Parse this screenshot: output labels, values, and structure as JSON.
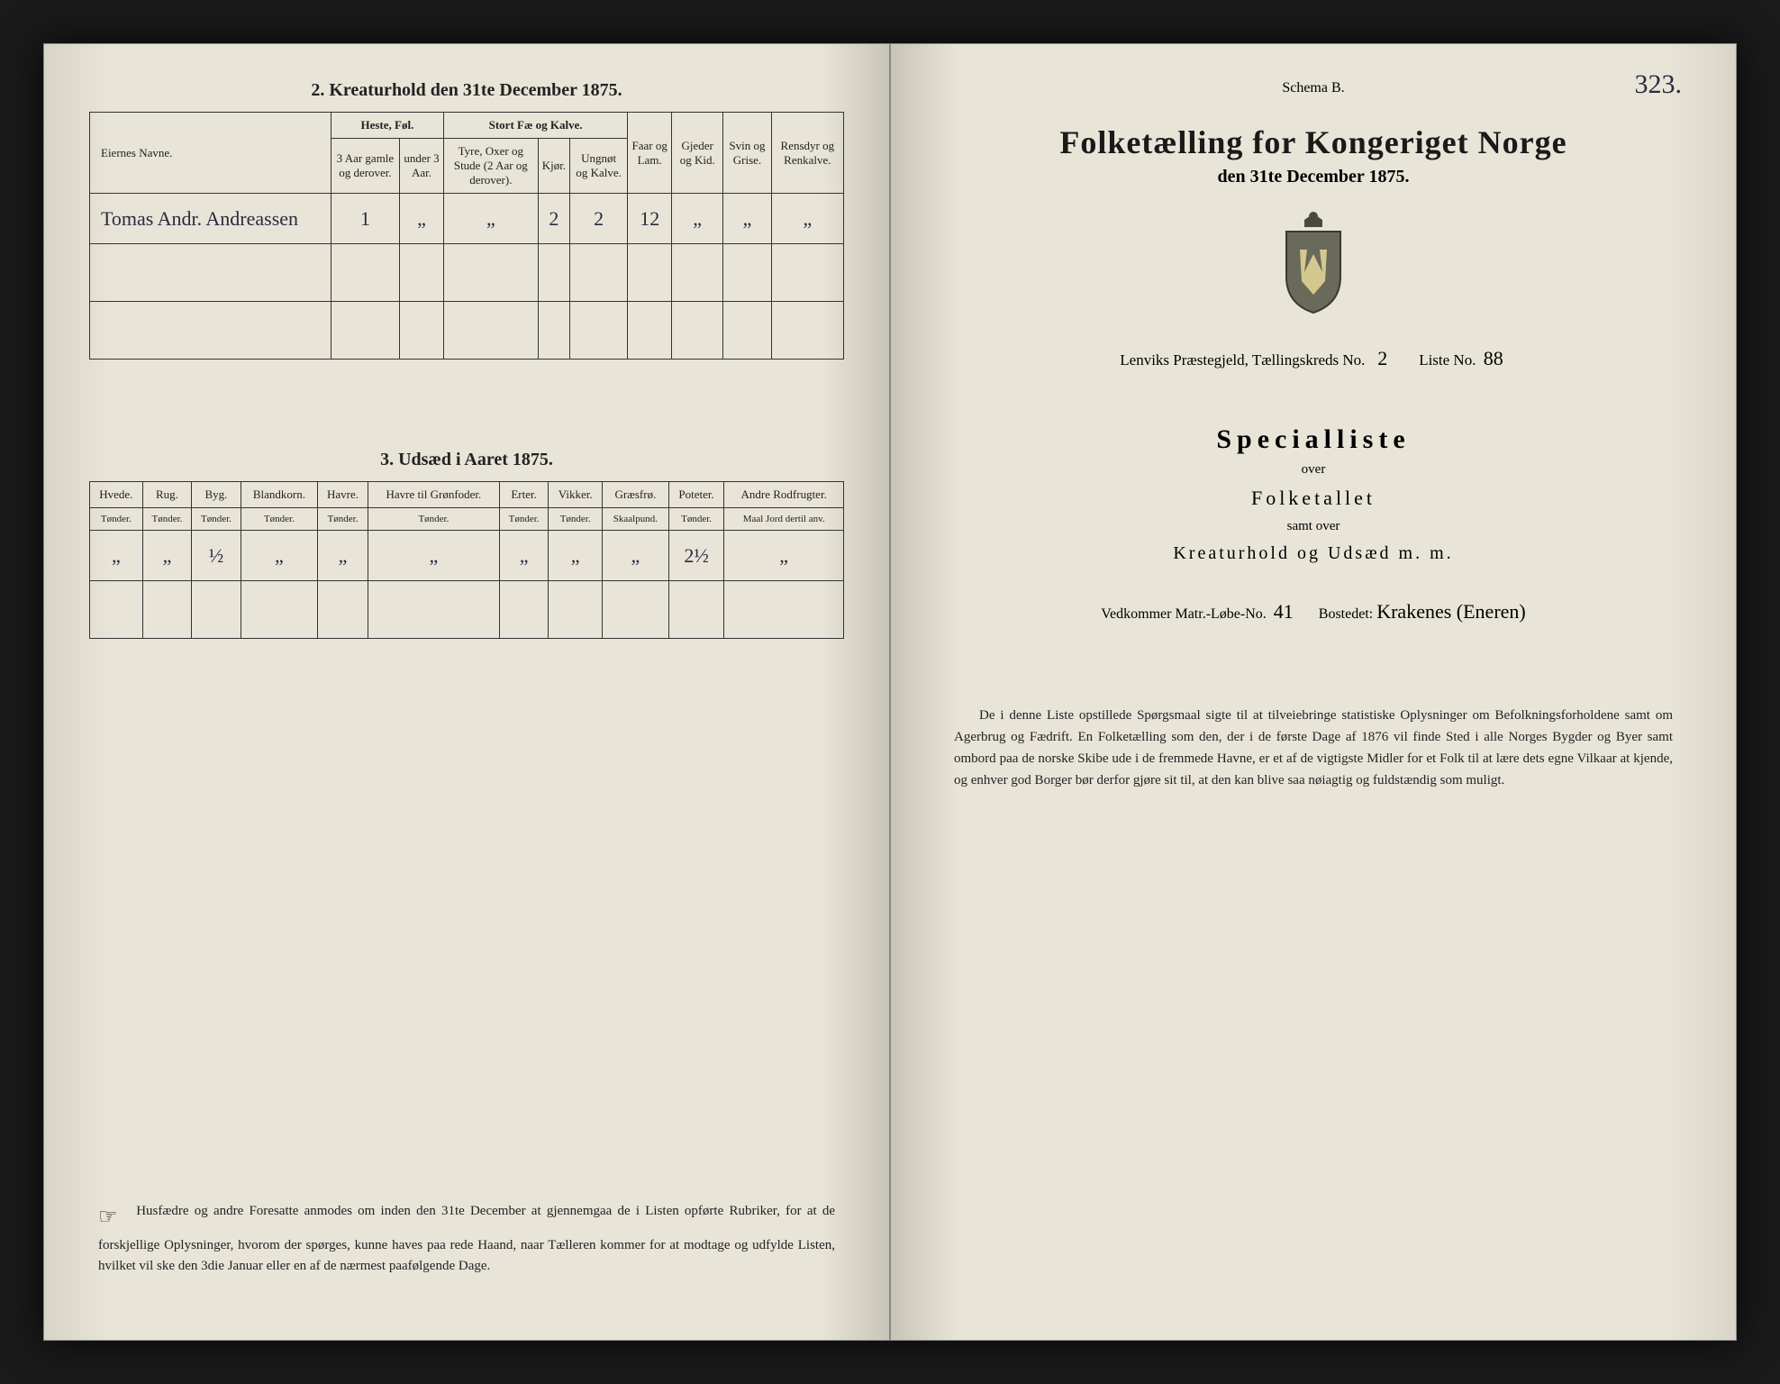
{
  "left": {
    "section2_title": "2.  Kreaturhold den 31te December 1875.",
    "table2": {
      "owner_header": "Eiernes Navne.",
      "groups": {
        "heste": "Heste, Føl.",
        "stort": "Stort Fæ og Kalve.",
        "faar": "Faar og Lam.",
        "gjeder": "Gjeder og Kid.",
        "svin": "Svin og Grise.",
        "rensdyr": "Rensdyr og Renkalve."
      },
      "sub": {
        "heste1": "3 Aar gamle og derover.",
        "heste2": "under 3 Aar.",
        "stort1": "Tyre, Oxer og Stude (2 Aar og derover).",
        "stort2": "Kjør.",
        "stort3": "Ungnøt og Kalve."
      },
      "row": {
        "name": "Tomas Andr. Andreassen",
        "heste1": "1",
        "heste2": "„",
        "stort1": "„",
        "stort2": "2",
        "stort3": "2",
        "faar": "12",
        "gjeder": "„",
        "svin": "„",
        "rensdyr": "„"
      }
    },
    "section3_title": "3.  Udsæd i Aaret 1875.",
    "table3": {
      "cols": [
        "Hvede.",
        "Rug.",
        "Byg.",
        "Blandkorn.",
        "Havre.",
        "Havre til Grønfoder.",
        "Erter.",
        "Vikker.",
        "Græsfrø.",
        "Poteter.",
        "Andre Rodfrugter."
      ],
      "units": [
        "Tønder.",
        "Tønder.",
        "Tønder.",
        "Tønder.",
        "Tønder.",
        "Tønder.",
        "Tønder.",
        "Tønder.",
        "Skaalpund.",
        "Tønder.",
        "Maal Jord dertil anv."
      ],
      "row": [
        "„",
        "„",
        "½",
        "„",
        "„",
        "„",
        "„",
        "„",
        "„",
        "2½",
        "„"
      ]
    },
    "footer": "Husfædre og andre Foresatte anmodes om inden den 31te December at gjennemgaa de i Listen opførte Rubriker, for at de forskjellige Oplysninger, hvorom der spørges, kunne haves paa rede Haand, naar Tælleren kommer for at modtage og udfylde Listen, hvilket vil ske den 3die Januar eller en af de nærmest paafølgende Dage."
  },
  "right": {
    "page_number": "323.",
    "schema": "Schema B.",
    "title": "Folketælling for Kongeriget Norge",
    "subtitle": "den 31te December 1875.",
    "jurisdiction_prefix": "Lenviks Præstegjeld,  Tællingskreds No.",
    "kreds_no": "2",
    "liste_label": "Liste No.",
    "liste_no": "88",
    "specialliste": "Specialliste",
    "over": "over",
    "folketallet": "Folketallet",
    "samt": "samt over",
    "kreatur": "Kreaturhold og Udsæd m. m.",
    "vedkommer_label": "Vedkommer Matr.-Løbe-No.",
    "matr_no": "41",
    "bosted_label": "Bostedet:",
    "bosted": "Krakenes (Eneren)",
    "body": "De i denne Liste opstillede Spørgsmaal sigte til at tilveiebringe statistiske Oplysninger om Befolkningsforholdene samt om Agerbrug og Fædrift. En Folketælling som den, der i de første Dage af 1876 vil finde Sted i alle Norges Bygder og Byer samt ombord paa de norske Skibe ude i de fremmede Havne, er et af de vigtigste Midler for et Folk til at lære dets egne Vilkaar at kjende, og enhver god Borger bør derfor gjøre sit til, at den kan blive saa nøiagtig og fuldstændig som muligt."
  },
  "colors": {
    "ink": "#222222",
    "handwriting": "#2a2a40",
    "paper": "#e8e4d8",
    "border": "#333333"
  }
}
